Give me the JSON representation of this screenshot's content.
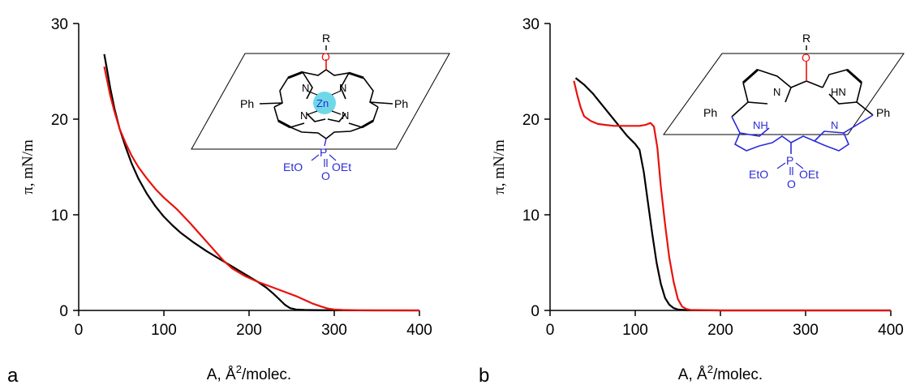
{
  "chart_data": [
    {
      "type": "line",
      "panel_label": "a",
      "xlabel_pre": "A, ",
      "xlabel_unit": "Å",
      "xlabel_sup": "2",
      "xlabel_post": "/molec.",
      "ylabel": "π, mN/m",
      "xlim": [
        0,
        400
      ],
      "ylim": [
        0,
        30
      ],
      "xticks": [
        0,
        100,
        200,
        300,
        400
      ],
      "yticks": [
        0,
        10,
        20,
        30
      ],
      "legend": "none",
      "grid": false,
      "series": [
        {
          "color": "#000000",
          "x": [
            30,
            33,
            37,
            42,
            48,
            55,
            62,
            70,
            80,
            90,
            100,
            110,
            120,
            135,
            150,
            165,
            180,
            195,
            210,
            220,
            228,
            235,
            242,
            248,
            255,
            265,
            280,
            300,
            350,
            400
          ],
          "y": [
            26.8,
            25.3,
            23.3,
            21.1,
            19.0,
            17.1,
            15.4,
            13.8,
            12.2,
            10.9,
            9.8,
            8.9,
            8.1,
            7.1,
            6.2,
            5.4,
            4.6,
            3.8,
            3.0,
            2.4,
            1.8,
            1.2,
            0.6,
            0.25,
            0.1,
            0.05,
            0.03,
            0.02,
            0.0,
            0.0
          ]
        },
        {
          "color": "#e8120c",
          "x": [
            30,
            33,
            37,
            42,
            48,
            55,
            62,
            70,
            80,
            90,
            100,
            115,
            130,
            145,
            160,
            170,
            180,
            195,
            210,
            225,
            240,
            255,
            265,
            275,
            285,
            292,
            300,
            310,
            330,
            400
          ],
          "y": [
            25.5,
            24.2,
            22.5,
            20.8,
            19.0,
            17.5,
            16.2,
            15.0,
            13.8,
            12.7,
            11.8,
            10.6,
            9.2,
            7.7,
            6.2,
            5.2,
            4.4,
            3.6,
            3.0,
            2.5,
            2.0,
            1.5,
            1.1,
            0.7,
            0.4,
            0.2,
            0.1,
            0.05,
            0.02,
            0.0
          ]
        }
      ]
    },
    {
      "type": "line",
      "panel_label": "b",
      "xlabel_pre": "A, ",
      "xlabel_unit": "Å",
      "xlabel_sup": "2",
      "xlabel_post": "/molec.",
      "ylabel": "π, mN/m",
      "xlim": [
        0,
        400
      ],
      "ylim": [
        0,
        30
      ],
      "xticks": [
        0,
        100,
        200,
        300,
        400
      ],
      "yticks": [
        0,
        10,
        20,
        30
      ],
      "legend": "none",
      "grid": false,
      "series": [
        {
          "color": "#000000",
          "x": [
            30,
            40,
            50,
            60,
            70,
            80,
            90,
            100,
            105,
            110,
            115,
            120,
            125,
            130,
            135,
            140,
            145,
            150,
            160,
            200,
            300,
            400
          ],
          "y": [
            24.3,
            23.6,
            22.7,
            21.6,
            20.5,
            19.4,
            18.3,
            17.4,
            16.8,
            14.5,
            11.2,
            8.0,
            5.0,
            2.8,
            1.3,
            0.6,
            0.25,
            0.1,
            0.03,
            0.0,
            0.0,
            0.0
          ]
        },
        {
          "color": "#e8120c",
          "x": [
            28,
            32,
            36,
            40,
            48,
            56,
            65,
            75,
            85,
            95,
            105,
            112,
            118,
            122,
            126,
            130,
            135,
            140,
            145,
            150,
            155,
            160,
            165,
            200,
            300,
            400
          ],
          "y": [
            24.0,
            22.5,
            21.2,
            20.3,
            19.8,
            19.5,
            19.4,
            19.3,
            19.3,
            19.3,
            19.3,
            19.4,
            19.6,
            19.2,
            17.0,
            13.0,
            9.0,
            5.5,
            3.0,
            1.2,
            0.4,
            0.15,
            0.06,
            0.0,
            0.0,
            0.0
          ]
        }
      ]
    }
  ],
  "molecules": {
    "a": {
      "r_label": "R",
      "o_label": "O",
      "n_label": "N",
      "zn_label": "Zn",
      "ph_label": "Ph",
      "p_label": "P",
      "eto_label": "EtO",
      "oet_label": "OEt",
      "po_label": "O"
    },
    "b": {
      "r_label": "R",
      "o_label": "O",
      "n_label": "N",
      "hn_label": "HN",
      "nh_label": "NH",
      "ph_label": "Ph",
      "p_label": "P",
      "eto_label": "EtO",
      "oet_label": "OEt",
      "po_label": "O"
    }
  },
  "colors": {
    "red": "#e8120c",
    "blue": "#2b2bd8",
    "zinc": "#6fd8e8"
  }
}
